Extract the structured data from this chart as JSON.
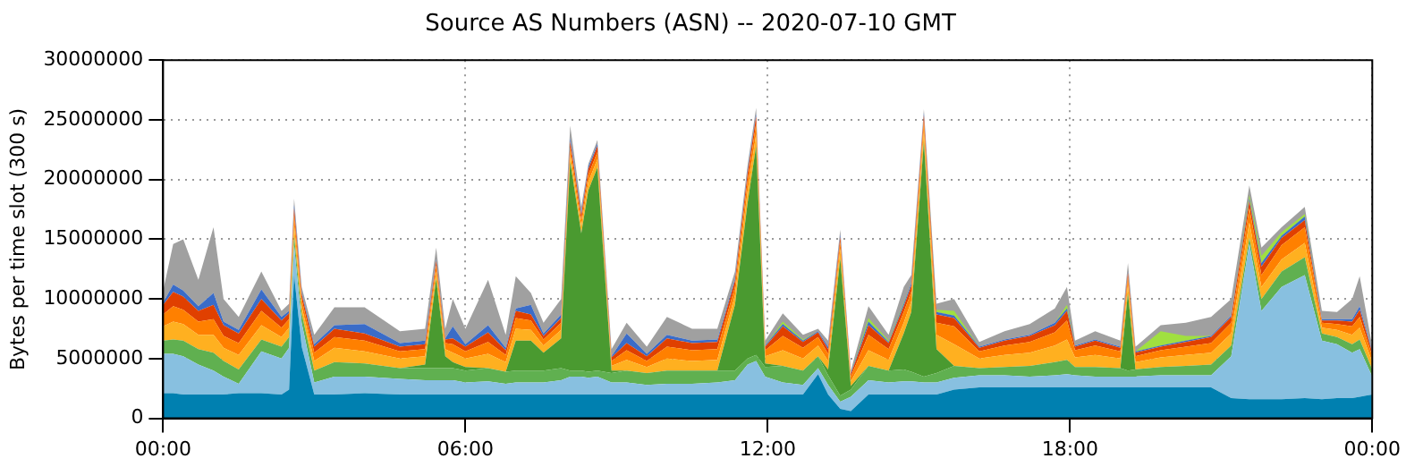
{
  "chart_data": {
    "type": "area",
    "stacked": true,
    "title": "Source AS Numbers (ASN) -- 2020-07-10 GMT",
    "ylabel": "Bytes per time slot (300 s)",
    "x": [
      0,
      0.2,
      0.4,
      0.7,
      1,
      1.2,
      1.5,
      1.95,
      2.35,
      2.5,
      2.6,
      2.75,
      3,
      3.4,
      4,
      4.7,
      5.2,
      5.42,
      5.6,
      5.75,
      6,
      6.45,
      6.8,
      7,
      7.3,
      7.55,
      7.9,
      8.08,
      8.3,
      8.44,
      8.62,
      8.9,
      9.2,
      9.6,
      10,
      10.5,
      11,
      11.35,
      11.6,
      11.77,
      11.95,
      12.3,
      12.7,
      13,
      13.2,
      13.44,
      13.65,
      14,
      14.4,
      14.7,
      14.85,
      15.1,
      15.35,
      15.7,
      16.2,
      16.7,
      17.2,
      17.7,
      17.94,
      18.1,
      18.5,
      19,
      19.15,
      19.3,
      19.8,
      20.3,
      20.8,
      21.2,
      21.56,
      21.8,
      22.2,
      22.66,
      23,
      23.3,
      23.6,
      23.75,
      24
    ],
    "series": [
      {
        "color": "#0080b0",
        "values": [
          2100000,
          2100000,
          2000000,
          2000000,
          2000000,
          2000000,
          2100000,
          2100000,
          2000000,
          2400000,
          12000000,
          6000000,
          2000000,
          2000000,
          2100000,
          2000000,
          2000000,
          2000000,
          2000000,
          2000000,
          2000000,
          2000000,
          2000000,
          2000000,
          2000000,
          2000000,
          2000000,
          2000000,
          2000000,
          2000000,
          2000000,
          2000000,
          2000000,
          2000000,
          2000000,
          2000000,
          2000000,
          2000000,
          2000000,
          2000000,
          2000000,
          2000000,
          2000000,
          3700000,
          2000000,
          800000,
          600000,
          2000000,
          2000000,
          2000000,
          2000000,
          2000000,
          2000000,
          2400000,
          2600000,
          2600000,
          2600000,
          2600000,
          2600000,
          2600000,
          2600000,
          2600000,
          2600000,
          2600000,
          2600000,
          2600000,
          2600000,
          1700000,
          1600000,
          1600000,
          1600000,
          1700000,
          1600000,
          1700000,
          1700000,
          1800000,
          2000000
        ]
      },
      {
        "color": "#88c0e0",
        "values": [
          3300000,
          3300000,
          3200000,
          2500000,
          2000000,
          1500000,
          800000,
          3500000,
          3000000,
          3500000,
          2500000,
          2000000,
          1000000,
          1500000,
          1400000,
          1300000,
          1200000,
          1200000,
          1200000,
          1200000,
          1000000,
          1100000,
          900000,
          1000000,
          1000000,
          1000000,
          1200000,
          1500000,
          1500000,
          1400000,
          1500000,
          1000000,
          1000000,
          800000,
          900000,
          900000,
          1000000,
          1200000,
          2500000,
          2800000,
          1500000,
          1000000,
          800000,
          500000,
          800000,
          600000,
          1200000,
          1200000,
          1000000,
          1100000,
          1100000,
          1000000,
          1000000,
          1000000,
          1000000,
          1000000,
          900000,
          1000000,
          1100000,
          1000000,
          900000,
          900000,
          900000,
          900000,
          1000000,
          1000000,
          1000000,
          3500000,
          13000000,
          7400000,
          9400000,
          10300000,
          4900000,
          4500000,
          3800000,
          4000000,
          1500000
        ]
      },
      {
        "color": "#60b050",
        "values": [
          1100000,
          1200000,
          1300000,
          1300000,
          1500000,
          1300000,
          1200000,
          1000000,
          1000000,
          900000,
          800000,
          800000,
          1000000,
          1200000,
          1100000,
          900000,
          1000000,
          1000000,
          1000000,
          1000000,
          1000000,
          1100000,
          1000000,
          1000000,
          1000000,
          1000000,
          1000000,
          500000,
          500000,
          500000,
          500000,
          800000,
          1000000,
          1000000,
          1100000,
          1100000,
          1000000,
          800000,
          500000,
          500000,
          800000,
          1400000,
          1200000,
          1000000,
          800000,
          500000,
          600000,
          1200000,
          1000000,
          1000000,
          800000,
          500000,
          800000,
          1000000,
          600000,
          700000,
          900000,
          1100000,
          1200000,
          700000,
          800000,
          700000,
          500000,
          600000,
          700000,
          800000,
          900000,
          900000,
          500000,
          1000000,
          1300000,
          1500000,
          600000,
          600000,
          700000,
          800000,
          600000
        ]
      },
      {
        "color": "#4a9a30",
        "values": [
          0,
          0,
          0,
          0,
          0,
          0,
          0,
          0,
          0,
          0,
          0,
          0,
          0,
          0,
          0,
          0,
          300000,
          7500000,
          1000000,
          500000,
          300000,
          0,
          0,
          2500000,
          2500000,
          1500000,
          2500000,
          17500000,
          11500000,
          15200000,
          17000000,
          200000,
          0,
          0,
          0,
          0,
          0,
          5500000,
          13000000,
          17500000,
          300000,
          0,
          0,
          0,
          500000,
          11500000,
          300000,
          0,
          0,
          3000000,
          5000000,
          19700000,
          2000000,
          0,
          0,
          0,
          0,
          0,
          0,
          0,
          0,
          0,
          6500000,
          0,
          0,
          0,
          0,
          0,
          0,
          0,
          0,
          0,
          0,
          0,
          0,
          0,
          0
        ]
      },
      {
        "color": "#ffb020",
        "values": [
          1200000,
          1500000,
          1400000,
          1200000,
          1500000,
          1100000,
          1200000,
          1200000,
          800000,
          800000,
          900000,
          600000,
          800000,
          1200000,
          1000000,
          800000,
          700000,
          600000,
          600000,
          800000,
          700000,
          1200000,
          800000,
          1000000,
          900000,
          600000,
          700000,
          600000,
          600000,
          700000,
          700000,
          400000,
          900000,
          500000,
          1000000,
          800000,
          900000,
          800000,
          1000000,
          1000000,
          600000,
          1300000,
          1000000,
          900000,
          700000,
          800000,
          400000,
          1300000,
          900000,
          900000,
          900000,
          900000,
          1200000,
          1800000,
          800000,
          1000000,
          1100000,
          1400000,
          1700000,
          800000,
          1000000,
          800000,
          700000,
          600000,
          800000,
          900000,
          1000000,
          1000000,
          1300000,
          1000000,
          1000000,
          1200000,
          500000,
          600000,
          800000,
          1000000,
          600000
        ]
      },
      {
        "color": "#ff8000",
        "values": [
          1000000,
          1300000,
          1200000,
          1100000,
          1300000,
          1000000,
          1000000,
          1200000,
          800000,
          700000,
          800000,
          600000,
          700000,
          900000,
          900000,
          600000,
          600000,
          500000,
          500000,
          700000,
          600000,
          1000000,
          600000,
          900000,
          800000,
          500000,
          600000,
          600000,
          500000,
          600000,
          600000,
          400000,
          800000,
          500000,
          1000000,
          900000,
          900000,
          700000,
          900000,
          900000,
          500000,
          1200000,
          900000,
          700000,
          600000,
          600000,
          400000,
          1300000,
          900000,
          900000,
          800000,
          800000,
          1000000,
          1500000,
          600000,
          800000,
          900000,
          1100000,
          1600000,
          600000,
          800000,
          600000,
          600000,
          500000,
          600000,
          700000,
          800000,
          900000,
          1200000,
          1000000,
          1200000,
          1300000,
          400000,
          500000,
          700000,
          900000,
          500000
        ]
      },
      {
        "color": "#e04000",
        "values": [
          800000,
          1200000,
          1100000,
          900000,
          1200000,
          900000,
          800000,
          1000000,
          600000,
          500000,
          600000,
          400000,
          500000,
          700000,
          600000,
          400000,
          400000,
          400000,
          300000,
          500000,
          400000,
          800000,
          400000,
          600000,
          500000,
          300000,
          400000,
          500000,
          400000,
          500000,
          500000,
          300000,
          600000,
          400000,
          700000,
          600000,
          600000,
          500000,
          600000,
          600000,
          300000,
          800000,
          500000,
          400000,
          400000,
          400000,
          200000,
          800000,
          500000,
          500000,
          500000,
          500000,
          700000,
          700000,
          300000,
          400000,
          500000,
          600000,
          800000,
          300000,
          400000,
          300000,
          400000,
          300000,
          300000,
          400000,
          500000,
          500000,
          600000,
          700000,
          600000,
          600000,
          200000,
          300000,
          400000,
          600000,
          300000
        ]
      },
      {
        "color": "#3a6cc8",
        "values": [
          200000,
          600000,
          500000,
          400000,
          1000000,
          300000,
          300000,
          800000,
          300000,
          200000,
          300000,
          200000,
          200000,
          300000,
          800000,
          300000,
          300000,
          100000,
          100000,
          1000000,
          200000,
          600000,
          200000,
          200000,
          800000,
          200000,
          300000,
          300000,
          200000,
          200000,
          200000,
          100000,
          800000,
          200000,
          300000,
          200000,
          200000,
          200000,
          200000,
          200000,
          100000,
          200000,
          100000,
          100000,
          200000,
          200000,
          100000,
          300000,
          100000,
          200000,
          200000,
          200000,
          200000,
          200000,
          100000,
          100000,
          100000,
          200000,
          200000,
          100000,
          100000,
          100000,
          100000,
          100000,
          100000,
          100000,
          100000,
          100000,
          200000,
          300000,
          200000,
          300000,
          100000,
          100000,
          200000,
          300000,
          100000
        ]
      },
      {
        "color": "#a0e040",
        "values": [
          null,
          null,
          null,
          null,
          null,
          null,
          null,
          null,
          null,
          null,
          null,
          null,
          null,
          null,
          null,
          null,
          null,
          null,
          null,
          null,
          null,
          null,
          null,
          null,
          null,
          null,
          null,
          null,
          null,
          null,
          null,
          null,
          null,
          null,
          null,
          null,
          null,
          null,
          null,
          null,
          0,
          200000,
          100000,
          0,
          null,
          null,
          0,
          300000,
          100000,
          100000,
          0,
          0,
          200000,
          400000,
          0,
          null,
          null,
          0,
          300000,
          0,
          null,
          null,
          null,
          0,
          1200000,
          400000,
          0,
          0,
          300000,
          600000,
          300000,
          200000,
          0,
          null,
          null,
          null,
          null
        ]
      },
      {
        "color": "#a0a0a0",
        "values": [
          1000000,
          3400000,
          4300000,
          2200000,
          5500000,
          1900000,
          1100000,
          1500000,
          500000,
          600000,
          500000,
          400000,
          800000,
          1500000,
          1400000,
          1000000,
          1000000,
          1000000,
          800000,
          2300000,
          1300000,
          3800000,
          1100000,
          2700000,
          1000000,
          900000,
          1300000,
          1000000,
          500000,
          200000,
          300000,
          600000,
          900000,
          600000,
          1500000,
          1000000,
          900000,
          600000,
          500000,
          500000,
          400000,
          700000,
          400000,
          200000,
          500000,
          400000,
          200000,
          1000000,
          500000,
          1300000,
          700000,
          300000,
          500000,
          1000000,
          400000,
          700000,
          900000,
          1200000,
          1500000,
          400000,
          700000,
          500000,
          700000,
          400000,
          500000,
          1100000,
          1600000,
          1400000,
          800000,
          700000,
          400000,
          600000,
          700000,
          600000,
          1700000,
          2500000,
          400000
        ]
      }
    ],
    "xlim": [
      0,
      24
    ],
    "xticks": [
      {
        "value": 0,
        "label": "00:00"
      },
      {
        "value": 6,
        "label": "06:00"
      },
      {
        "value": 12,
        "label": "12:00"
      },
      {
        "value": 18,
        "label": "18:00"
      },
      {
        "value": 24,
        "label": "00:00"
      }
    ],
    "ylim": [
      0,
      30000000
    ],
    "yticks": [
      0,
      5000000,
      10000000,
      15000000,
      20000000,
      25000000,
      30000000
    ],
    "grid": true,
    "legend": false
  }
}
